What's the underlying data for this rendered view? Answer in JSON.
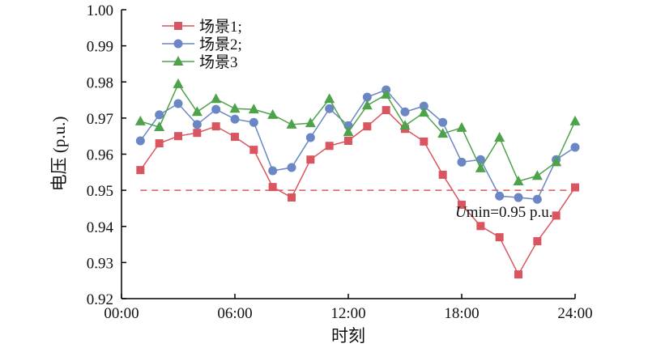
{
  "chart_data": {
    "type": "line",
    "title": "",
    "xlabel": "时刻",
    "ylabel": "电压 (p.u.)",
    "xlim": [
      0,
      24
    ],
    "ylim": [
      0.92,
      1.0
    ],
    "grid": false,
    "legend_position": "top-left",
    "x_ticks": [
      0,
      6,
      12,
      18,
      24
    ],
    "x_tick_labels": [
      "00:00",
      "06:00",
      "12:00",
      "18:00",
      "24:00"
    ],
    "y_ticks": [
      0.92,
      0.93,
      0.94,
      0.95,
      0.96,
      0.97,
      0.98,
      0.99,
      1.0
    ],
    "y_tick_labels": [
      "0.92",
      "0.93",
      "0.94",
      "0.95",
      "0.96",
      "0.97",
      "0.98",
      "0.99",
      "1.00"
    ],
    "x": [
      1,
      2,
      3,
      4,
      5,
      6,
      7,
      8,
      9,
      10,
      11,
      12,
      13,
      14,
      15,
      16,
      17,
      18,
      19,
      20,
      21,
      22,
      23,
      24
    ],
    "series": [
      {
        "name": "场景1;",
        "color": "#d9555f",
        "marker": "square",
        "values": [
          0.9556,
          0.963,
          0.965,
          0.9659,
          0.9677,
          0.9648,
          0.9612,
          0.9509,
          0.948,
          0.9585,
          0.9623,
          0.9637,
          0.9677,
          0.9722,
          0.967,
          0.9635,
          0.9543,
          0.946,
          0.9401,
          0.937,
          0.9267,
          0.9359,
          0.943,
          0.9508
        ]
      },
      {
        "name": "场景2;",
        "color": "#6a86c4",
        "marker": "circle",
        "values": [
          0.9637,
          0.9709,
          0.974,
          0.9682,
          0.9724,
          0.9697,
          0.9688,
          0.9554,
          0.9563,
          0.9646,
          0.9726,
          0.9679,
          0.9758,
          0.9778,
          0.9717,
          0.9733,
          0.9688,
          0.9578,
          0.9585,
          0.9484,
          0.948,
          0.9475,
          0.9585,
          0.9619
        ]
      },
      {
        "name": "场景3",
        "color": "#4ea24a",
        "marker": "triangle",
        "values": [
          0.9691,
          0.9675,
          0.9794,
          0.9717,
          0.9753,
          0.9726,
          0.9724,
          0.9709,
          0.9682,
          0.9686,
          0.9753,
          0.9661,
          0.9735,
          0.9765,
          0.9679,
          0.9715,
          0.9657,
          0.9673,
          0.9561,
          0.9646,
          0.9525,
          0.954,
          0.9578,
          0.9691
        ]
      }
    ],
    "reference_line": {
      "value": 0.95,
      "color": "#d9555f",
      "style": "dashed",
      "label_italic": "U",
      "label_rest": "min=0.95 p.u."
    }
  }
}
